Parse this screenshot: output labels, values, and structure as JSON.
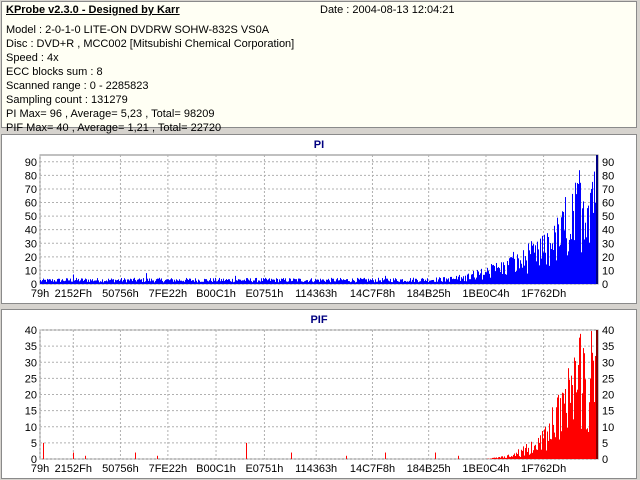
{
  "header": {
    "title": "KProbe v2.3.0 - Designed by Karr",
    "date": "Date : 2004-08-13 12:04:21",
    "lines": [
      "Model : 2-0-1-0 LITE-ON DVDRW SOHW-832S  VS0A",
      "Disc : DVD+R , MCC002 [Mitsubishi Chemical Corporation]",
      "Speed : 4x",
      "ECC blocks sum : 8",
      "Scanned range : 0 - 2285823",
      "Sampling count : 131279",
      "PI Max= 96 , Average= 5,23 , Total= 98209",
      "PIF Max= 40 , Average= 1,21 , Total= 22720"
    ]
  },
  "x_tick_labels": [
    "79h",
    "2152Fh",
    "50756h",
    "7FE22h",
    "B00C1h",
    "E0751h",
    "114363h",
    "14C7F8h",
    "184B25h",
    "1BE0C4h",
    "1F762Dh"
  ],
  "chart_data": [
    {
      "type": "bar",
      "title": "PI",
      "color": "#0000ff",
      "ylim": [
        0,
        95
      ],
      "y_ticks": [
        0,
        10,
        20,
        30,
        40,
        50,
        60,
        70,
        80,
        90
      ],
      "grid": true,
      "x_range": [
        0,
        2285823
      ],
      "x_tick_values": [
        121,
        136495,
        329558,
        523810,
        721089,
        919377,
        1131363,
        1361912,
        1592101,
        1826948,
        2062893
      ],
      "x_tick_labels": [
        "79h",
        "2152Fh",
        "50756h",
        "7FE22h",
        "B00C1h",
        "E0751h",
        "114363h",
        "14C7F8h",
        "184B25h",
        "1BE0C4h",
        "1F762Dh"
      ],
      "envelope": {
        "x": [
          0,
          0.05,
          0.2,
          0.4,
          0.6,
          0.72,
          0.76,
          0.8,
          0.85,
          0.9,
          0.94,
          0.97,
          1.0
        ],
        "y": [
          3,
          3.5,
          3.5,
          3.5,
          3.5,
          4,
          5,
          10,
          17,
          26,
          45,
          65,
          96
        ]
      },
      "spikes": [
        {
          "x": 0.06,
          "y": 7
        },
        {
          "x": 0.19,
          "y": 8
        },
        {
          "x": 0.35,
          "y": 6
        },
        {
          "x": 0.62,
          "y": 6
        }
      ]
    },
    {
      "type": "bar",
      "title": "PIF",
      "color": "#ff0000",
      "ylim": [
        0,
        40
      ],
      "y_ticks": [
        0,
        5,
        10,
        15,
        20,
        25,
        30,
        35,
        40
      ],
      "grid": true,
      "x_range": [
        0,
        2285823
      ],
      "x_tick_values": [
        121,
        136495,
        329558,
        523810,
        721089,
        919377,
        1131363,
        1361912,
        1592101,
        1826948,
        2062893
      ],
      "x_tick_labels": [
        "79h",
        "2152Fh",
        "50756h",
        "7FE22h",
        "B00C1h",
        "E0751h",
        "114363h",
        "14C7F8h",
        "184B25h",
        "1BE0C4h",
        "1F762Dh"
      ],
      "envelope": {
        "x": [
          0,
          0.8,
          0.84,
          0.87,
          0.9,
          0.93,
          0.96,
          0.98,
          1.0
        ],
        "y": [
          0,
          0,
          1,
          3,
          7,
          15,
          24,
          32,
          40
        ]
      },
      "spikes": [
        {
          "x": 0.005,
          "y": 5
        },
        {
          "x": 0.06,
          "y": 2
        },
        {
          "x": 0.08,
          "y": 1
        },
        {
          "x": 0.17,
          "y": 2
        },
        {
          "x": 0.21,
          "y": 1
        },
        {
          "x": 0.37,
          "y": 5
        },
        {
          "x": 0.45,
          "y": 2
        },
        {
          "x": 0.55,
          "y": 1
        },
        {
          "x": 0.62,
          "y": 2
        },
        {
          "x": 0.71,
          "y": 2
        },
        {
          "x": 0.75,
          "y": 1
        }
      ]
    }
  ]
}
